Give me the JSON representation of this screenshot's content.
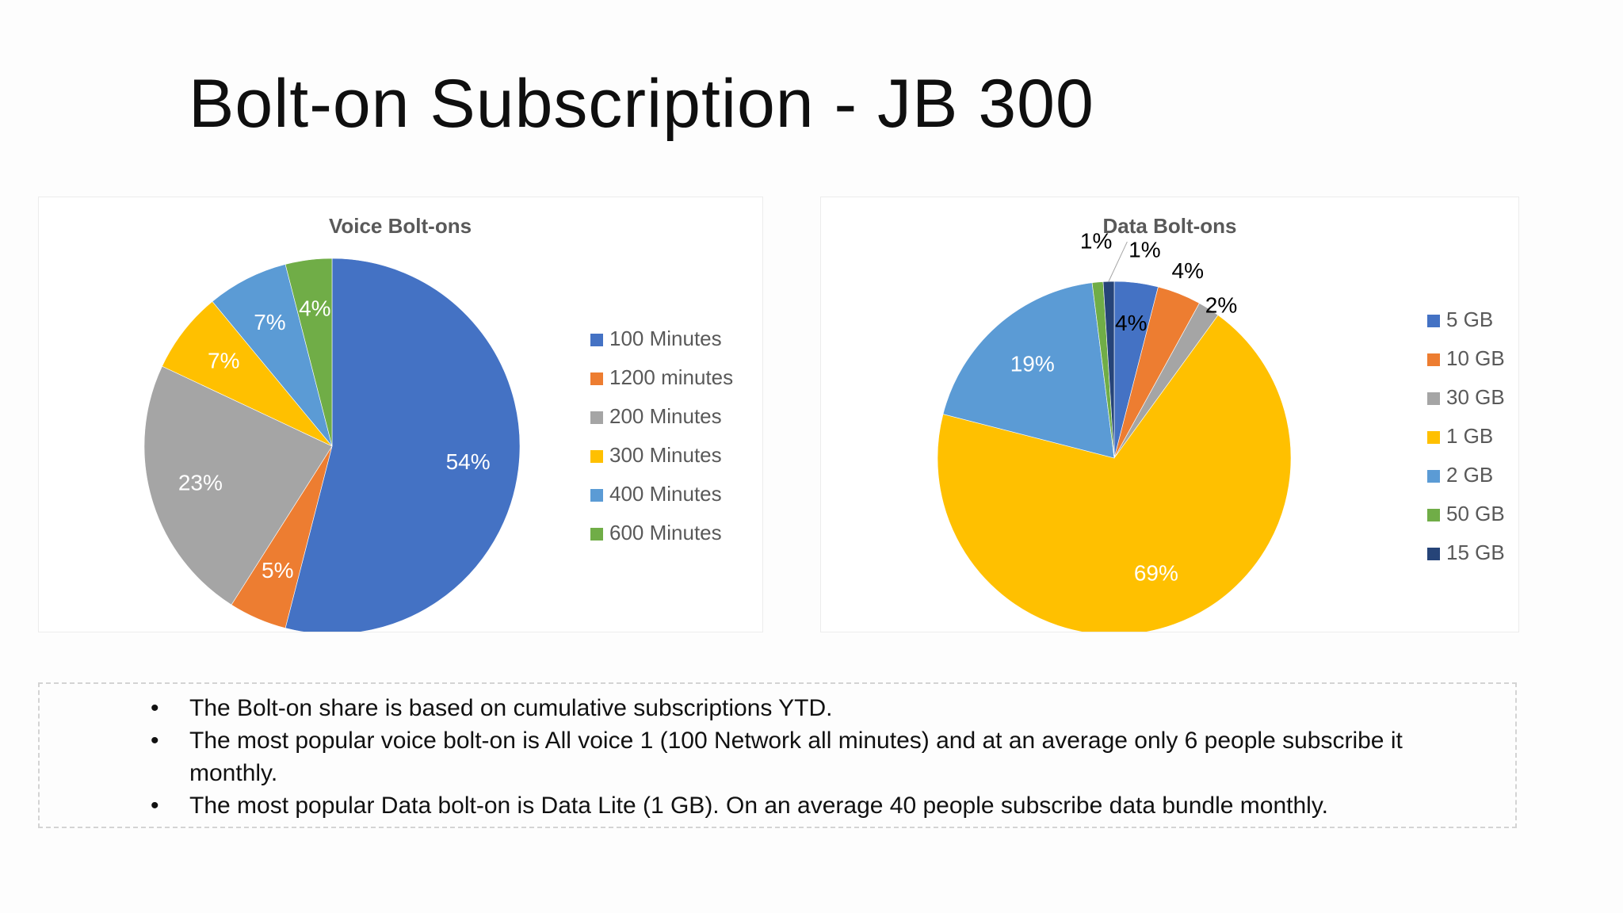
{
  "slide": {
    "title": "Bolt-on Subscription - JB 300"
  },
  "chart_data": [
    {
      "type": "pie",
      "title": "Voice Bolt-ons",
      "categories": [
        "100 Minutes",
        "1200 minutes",
        "200 Minutes",
        "300 Minutes",
        "400 Minutes",
        "600 Minutes"
      ],
      "values": [
        54,
        5,
        23,
        7,
        7,
        4
      ],
      "labels": [
        "54%",
        "5%",
        "23%",
        "7%",
        "7%",
        "4%"
      ],
      "colors": [
        "#4472C4",
        "#ED7D31",
        "#A5A5A5",
        "#FFC000",
        "#5B9BD5",
        "#70AD47"
      ],
      "legend": "right"
    },
    {
      "type": "pie",
      "title": "Data Bolt-ons",
      "categories": [
        "5 GB",
        "10 GB",
        "30 GB",
        "1 GB",
        "2 GB",
        "50 GB",
        "15 GB"
      ],
      "values": [
        4,
        4,
        2,
        69,
        19,
        1,
        1
      ],
      "labels": [
        "4%",
        "4%",
        "2%",
        "69%",
        "19%",
        "1%",
        "1%"
      ],
      "colors": [
        "#4472C4",
        "#ED7D31",
        "#A5A5A5",
        "#FFC000",
        "#5B9BD5",
        "#70AD47",
        "#264478"
      ],
      "legend": "right"
    }
  ],
  "notes": {
    "bullet_symbol": "•",
    "items": [
      "The Bolt-on share is based on cumulative subscriptions YTD.",
      "The most popular voice bolt-on is  All voice 1 (100 Network all minutes) and at an average only 6 people subscribe it monthly.",
      "The most popular Data bolt-on is Data Lite (1 GB). On an average 40 people subscribe data bundle monthly."
    ]
  }
}
